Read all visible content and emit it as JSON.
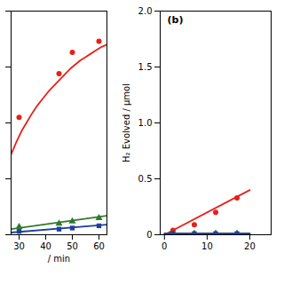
{
  "chart_data": [
    {
      "type": "line",
      "xlabel": "/ min",
      "xlim": [
        27,
        63
      ],
      "xticks": [
        30,
        40,
        50,
        60
      ],
      "ylim": [
        0,
        2.0
      ],
      "yticks": [
        0,
        0.5,
        1.0,
        1.5,
        2.0
      ],
      "tick_labels": "x",
      "series": [
        {
          "type": "line",
          "color": "#e8201a",
          "x": [
            27,
            29,
            31,
            33,
            35,
            37,
            39,
            41,
            43,
            45,
            47,
            49,
            51,
            53,
            55,
            57,
            59,
            61,
            63
          ],
          "values": [
            0.72,
            0.83,
            0.93,
            1.01,
            1.09,
            1.16,
            1.22,
            1.28,
            1.33,
            1.38,
            1.43,
            1.48,
            1.52,
            1.56,
            1.59,
            1.62,
            1.65,
            1.68,
            1.7
          ]
        },
        {
          "type": "scatter",
          "color": "#e8201a",
          "marker": "circle",
          "x": [
            30,
            45,
            50,
            60
          ],
          "values": [
            1.05,
            1.44,
            1.63,
            1.73
          ]
        },
        {
          "type": "line",
          "color": "#2d7a2d",
          "x": [
            27,
            63
          ],
          "values": [
            0.05,
            0.17
          ]
        },
        {
          "type": "scatter",
          "color": "#2d7a2d",
          "marker": "triangle",
          "x": [
            30,
            45,
            50,
            60
          ],
          "values": [
            0.07,
            0.1,
            0.12,
            0.15
          ]
        },
        {
          "type": "line",
          "color": "#1e3f9e",
          "x": [
            27,
            63
          ],
          "values": [
            0.02,
            0.09
          ]
        },
        {
          "type": "scatter",
          "color": "#1e3f9e",
          "marker": "square",
          "x": [
            30,
            45,
            50,
            60
          ],
          "values": [
            0.03,
            0.05,
            0.06,
            0.08
          ]
        }
      ]
    },
    {
      "type": "line",
      "ylabel": "H₂ Evolved / μmol",
      "annotations": [
        "(b)"
      ],
      "xlim": [
        -1,
        25
      ],
      "xticks": [
        0,
        10,
        20
      ],
      "ylim": [
        0,
        2.0
      ],
      "yticks": [
        0,
        0.5,
        {
          "value": 1.0,
          "label": "1.0"
        },
        1.5,
        {
          "value": 2.0,
          "label": "2.0"
        }
      ],
      "series": [
        {
          "type": "line",
          "color": "#e8201a",
          "x": [
            0,
            20
          ],
          "values": [
            0.0,
            0.4
          ]
        },
        {
          "type": "scatter",
          "color": "#e8201a",
          "marker": "circle",
          "x": [
            2,
            7,
            12,
            17
          ],
          "values": [
            0.04,
            0.09,
            0.2,
            0.33
          ]
        },
        {
          "type": "line",
          "color": "#2d7a2d",
          "x": [
            0,
            20
          ],
          "values": [
            0.01,
            0.01
          ]
        },
        {
          "type": "scatter",
          "color": "#2d7a2d",
          "marker": "triangle",
          "x": [
            2,
            7,
            12,
            17
          ],
          "values": [
            0.01,
            0.01,
            0.01,
            0.01
          ]
        },
        {
          "type": "line",
          "color": "#1e3f9e",
          "x": [
            0,
            20
          ],
          "values": [
            0.01,
            0.01
          ]
        },
        {
          "type": "scatter",
          "color": "#1e3f9e",
          "marker": "square",
          "x": [
            2,
            7,
            12,
            17
          ],
          "values": [
            0.01,
            0.01,
            0.01,
            0.01
          ]
        }
      ]
    }
  ]
}
